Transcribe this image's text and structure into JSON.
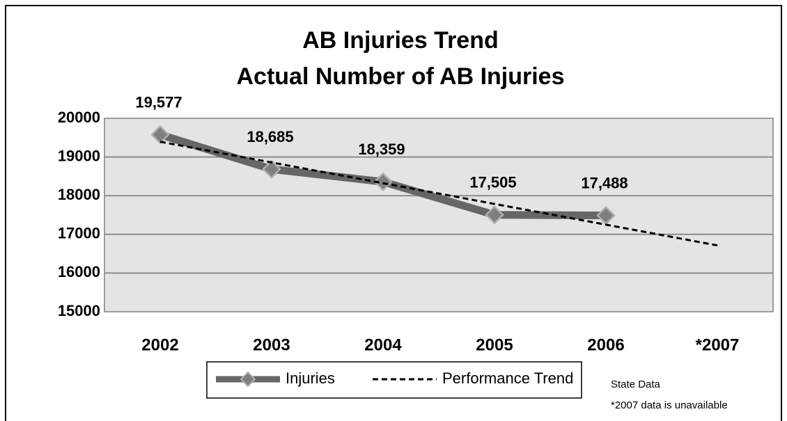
{
  "chart_data": {
    "type": "line",
    "title": [
      "AB Injuries Trend",
      "Actual Number of AB Injuries"
    ],
    "categories": [
      "2002",
      "2003",
      "2004",
      "2005",
      "2006",
      "*2007"
    ],
    "series": [
      {
        "name": "Injuries",
        "color": "#666666",
        "style": "solid",
        "marker": "diamond",
        "values": [
          19577,
          18685,
          18359,
          17505,
          17488,
          null
        ],
        "value_labels": [
          "19,577",
          "18,685",
          "18,359",
          "17,505",
          "17,488",
          null
        ]
      },
      {
        "name": "Performance Trend",
        "color": "#000000",
        "style": "dashed",
        "values": [
          19394,
          18859,
          18323,
          17787,
          17251,
          16715
        ]
      }
    ],
    "ylim": [
      15000,
      20000
    ],
    "yticks": [
      15000,
      16000,
      17000,
      18000,
      19000,
      20000
    ],
    "grid": true,
    "legend": "bottom",
    "annotations": [
      "State Data",
      "*2007 data is unavailable"
    ]
  }
}
